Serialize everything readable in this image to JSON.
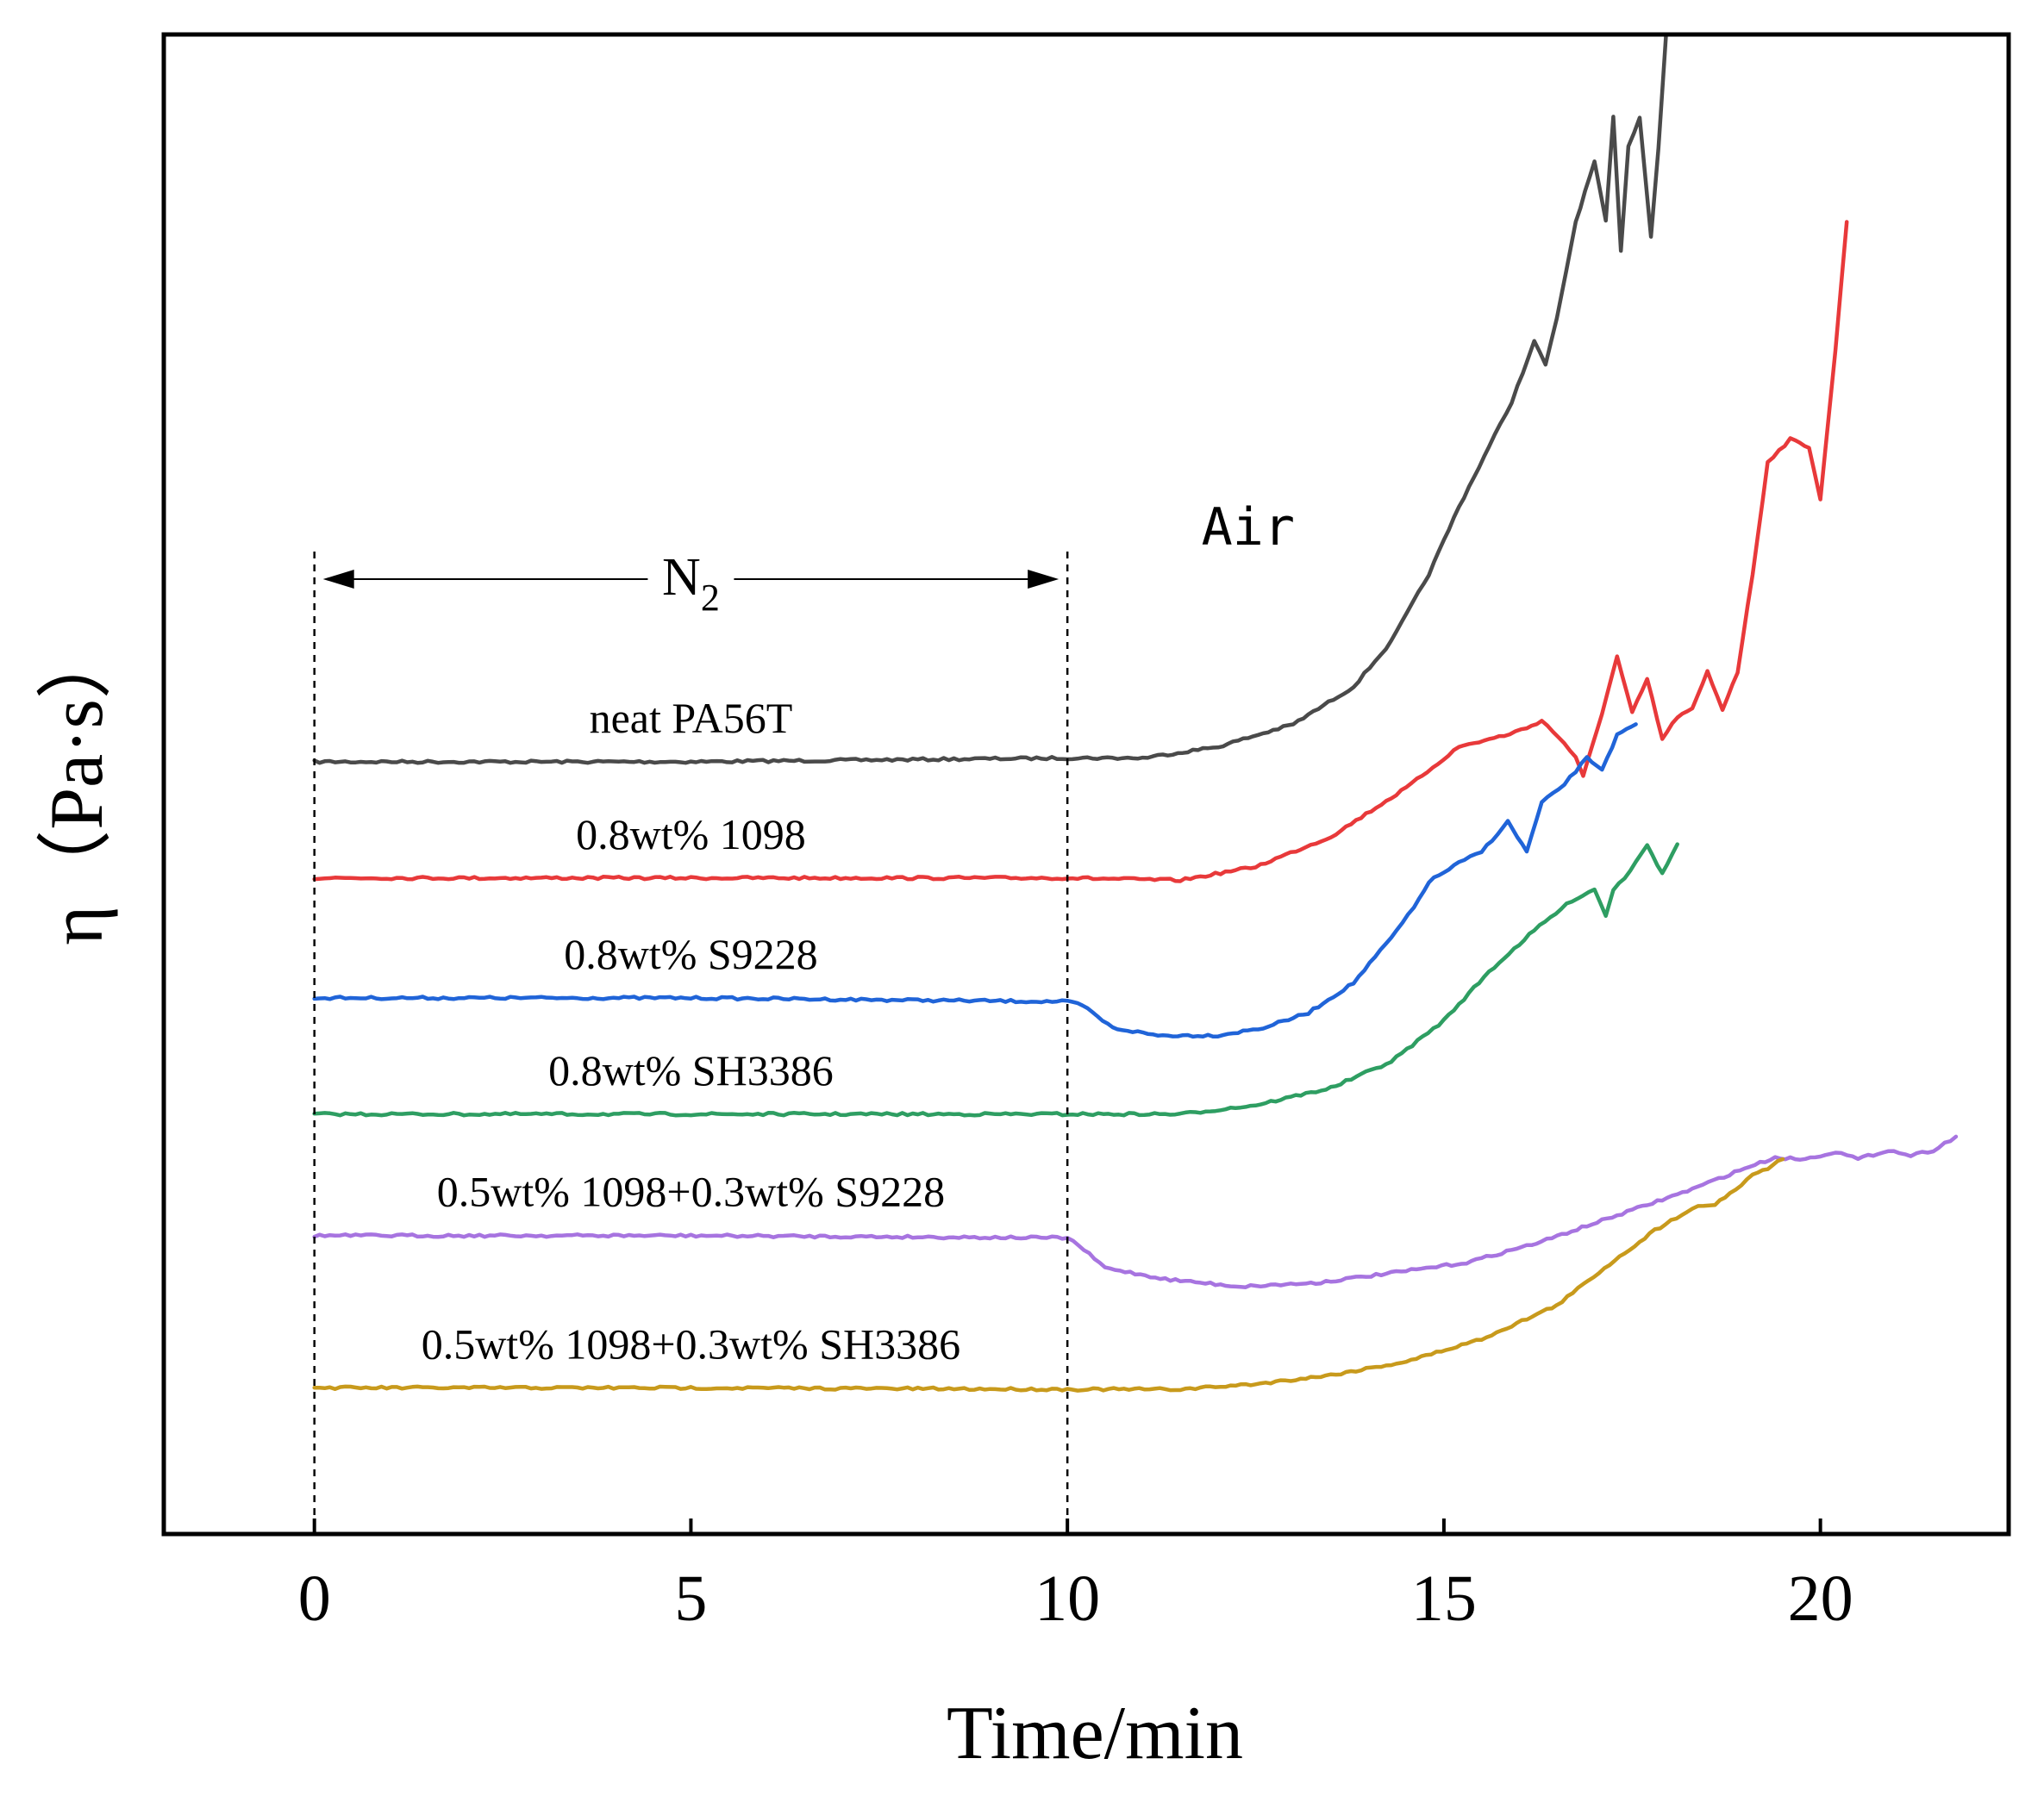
{
  "chart_data": {
    "type": "line",
    "title": "",
    "xlabel": "Time/min",
    "ylabel": "η（Pa·s）",
    "xlim": [
      -2,
      22.5
    ],
    "ylim": [
      0,
      20
    ],
    "x_ticks": [
      0,
      5,
      10,
      15,
      20
    ],
    "x_tick_labels": [
      "0",
      "5",
      "10",
      "15",
      "20"
    ],
    "y_ticks_shown": false,
    "grid": false,
    "legend": "none (labels placed inline above each curve)",
    "regions": [
      {
        "label_main": "N",
        "label_sub": "2",
        "x_start": 0,
        "x_end": 10
      },
      {
        "label": "Air",
        "x_start": 10,
        "x_end": 22
      }
    ],
    "series": [
      {
        "name": "neat PA56T",
        "color": "#4a4a4a",
        "x": [
          0,
          5,
          10,
          11,
          12,
          13,
          13.8,
          14.3,
          14.8,
          15.2,
          15.6,
          15.9,
          16.2,
          16.35,
          16.5,
          16.75,
          17.0,
          17.15,
          17.25,
          17.35,
          17.45,
          17.6,
          17.75,
          17.85,
          17.95
        ],
        "y": [
          10.3,
          10.3,
          10.35,
          10.35,
          10.5,
          10.8,
          11.3,
          11.9,
          12.8,
          13.7,
          14.5,
          15.1,
          15.9,
          15.6,
          16.2,
          17.5,
          18.3,
          17.5,
          18.9,
          17.1,
          18.5,
          18.9,
          17.3,
          18.5,
          20.0
        ]
      },
      {
        "name": "0.8wt% 1098",
        "color": "#e8393a",
        "x": [
          0,
          5,
          10,
          11.5,
          12.5,
          13.5,
          14.5,
          15.2,
          15.8,
          16.1,
          16.3,
          16.6,
          16.75,
          16.85,
          17.1,
          17.3,
          17.5,
          17.7,
          17.9,
          18.1,
          18.3,
          18.5,
          18.7,
          18.9,
          19.1,
          19.3,
          19.6,
          19.85,
          20.0,
          20.2,
          20.35
        ],
        "y": [
          8.75,
          8.75,
          8.75,
          8.72,
          8.9,
          9.3,
          9.95,
          10.5,
          10.65,
          10.75,
          10.85,
          10.55,
          10.35,
          10.1,
          10.95,
          11.7,
          10.95,
          11.4,
          10.6,
          10.9,
          11.0,
          11.5,
          11.0,
          11.5,
          12.8,
          14.3,
          14.6,
          14.5,
          13.8,
          15.8,
          17.5
        ]
      },
      {
        "name": "0.8wt% S9228",
        "color": "#2064d8",
        "x": [
          0,
          5,
          10,
          10.2,
          10.6,
          11.2,
          12.0,
          12.6,
          13.2,
          13.8,
          14.3,
          14.6,
          14.8,
          15.2,
          15.5,
          15.85,
          16.1,
          16.3,
          16.6,
          16.9,
          17.1,
          17.3,
          17.55
        ],
        "y": [
          7.15,
          7.15,
          7.1,
          7.05,
          6.75,
          6.65,
          6.65,
          6.75,
          6.95,
          7.35,
          7.95,
          8.35,
          8.7,
          8.95,
          9.1,
          9.5,
          9.1,
          9.75,
          10.0,
          10.35,
          10.2,
          10.65,
          10.8
        ]
      },
      {
        "name": "0.8wt% SH3386",
        "color": "#2e9e62",
        "x": [
          0,
          5,
          10,
          11.5,
          12.5,
          13.5,
          14.3,
          15.0,
          15.6,
          16.2,
          16.7,
          17.0,
          17.15,
          17.25,
          17.4,
          17.7,
          17.9,
          18.1
        ],
        "y": [
          5.6,
          5.6,
          5.6,
          5.6,
          5.72,
          5.95,
          6.3,
          6.85,
          7.5,
          8.05,
          8.45,
          8.6,
          8.25,
          8.6,
          8.75,
          9.2,
          8.8,
          9.2
        ]
      },
      {
        "name": "0.5wt% 1098+0.3wt% S9228",
        "color": "#a774e0",
        "x": [
          0,
          5,
          10,
          10.15,
          10.5,
          11.3,
          12.3,
          13.3,
          14.3,
          15.3,
          16.3,
          17.3,
          18.3,
          19.0,
          19.4,
          19.8,
          20.2,
          20.5,
          20.9,
          21.2,
          21.5,
          21.8
        ],
        "y": [
          3.98,
          3.98,
          3.95,
          3.85,
          3.55,
          3.4,
          3.3,
          3.35,
          3.48,
          3.62,
          3.9,
          4.25,
          4.6,
          4.88,
          5.02,
          5.0,
          5.1,
          5.0,
          5.12,
          5.05,
          5.12,
          5.3
        ]
      },
      {
        "name": "0.5wt% 1098+0.3wt% SH3386",
        "color": "#c89a1c",
        "x": [
          0,
          5,
          10,
          11.5,
          12.5,
          13.5,
          14.5,
          15.5,
          16.5,
          17.2,
          17.8,
          18.3,
          18.6,
          18.8,
          18.95,
          19.1,
          19.3,
          19.5
        ],
        "y": [
          1.95,
          1.95,
          1.93,
          1.93,
          2.0,
          2.12,
          2.3,
          2.6,
          3.05,
          3.6,
          4.05,
          4.35,
          4.4,
          4.55,
          4.65,
          4.8,
          4.88,
          5.0
        ]
      }
    ]
  }
}
